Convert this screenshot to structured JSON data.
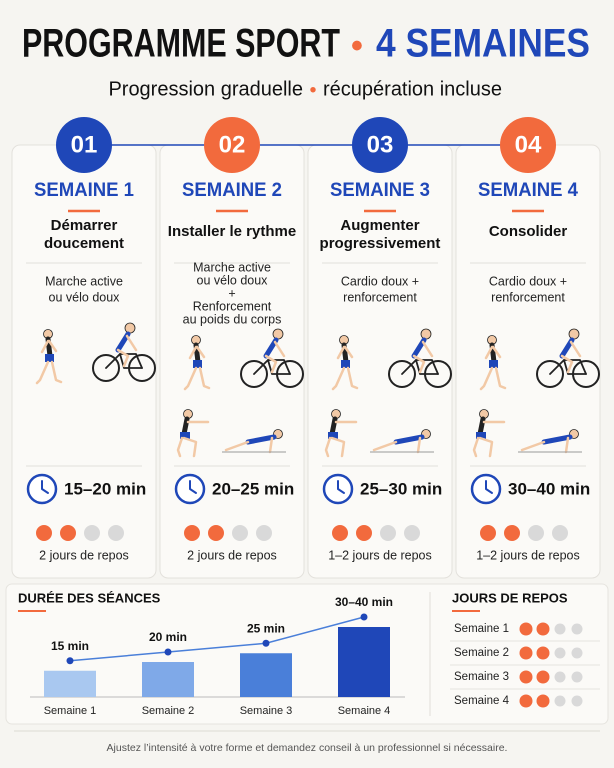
{
  "header": {
    "title_part1": "PROGRAMME SPORT",
    "separator": "•",
    "title_part2": "4 SEMAINES",
    "subtitle_part1": "Progression graduelle",
    "subtitle_separator": "•",
    "subtitle_part2": "récupération incluse"
  },
  "weeks": [
    {
      "number": "01",
      "label": "SEMAINE 1",
      "badge_color": "#1f47b8",
      "focus": [
        "Démarrer",
        "doucement"
      ],
      "activity": [
        "Marche active",
        "ou vélo doux"
      ],
      "strength_figures": false,
      "duration": "15–20 min",
      "rest_dots_filled": 2,
      "rest": "2 jours de repos"
    },
    {
      "number": "02",
      "label": "SEMAINE 2",
      "badge_color": "#f26a3d",
      "focus": [
        "Installer le rythme"
      ],
      "activity": [
        "Marche active",
        "ou vélo doux",
        "+",
        "Renforcement",
        "au poids du corps"
      ],
      "strength_figures": true,
      "duration": "20–25 min",
      "rest_dots_filled": 2,
      "rest": "2 jours de repos"
    },
    {
      "number": "03",
      "label": "SEMAINE 3",
      "badge_color": "#1f47b8",
      "focus": [
        "Augmenter",
        "progressivement"
      ],
      "activity": [
        "Cardio doux +",
        "renforcement"
      ],
      "strength_figures": true,
      "duration": "25–30 min",
      "rest_dots_filled": 2,
      "rest": "1–2  jours de repos"
    },
    {
      "number": "04",
      "label": "SEMAINE 4",
      "badge_color": "#f26a3d",
      "focus": [
        "Consolider"
      ],
      "activity": [
        "Cardio doux +",
        "renforcement"
      ],
      "strength_figures": true,
      "duration": "30–40 min",
      "rest_dots_filled": 2,
      "rest": "1–2  jours de repos"
    }
  ],
  "duration_chart": {
    "type": "bar",
    "title": "DURÉE DES SÉANCES",
    "categories": [
      "Semaine 1",
      "Semaine 2",
      "Semaine 3",
      "Semaine 4"
    ],
    "values": [
      15,
      20,
      25,
      40
    ],
    "value_labels": [
      "15 min",
      "20 min",
      "25 min",
      "30–40 min"
    ],
    "colors": [
      "#a9c8f0",
      "#7fa9e8",
      "#4a7fd9",
      "#1f47b8"
    ]
  },
  "rest_table": {
    "title": "JOURS DE REPOS",
    "rows": [
      {
        "label": "Semaine 1",
        "filled": 2
      },
      {
        "label": "Semaine 2",
        "filled": 2
      },
      {
        "label": "Semaine 3",
        "filled": 2
      },
      {
        "label": "Semaine 4",
        "filled": 2
      }
    ]
  },
  "footer": "Ajustez l’intensité à votre forme et demandez conseil à un professionnel si nécessaire."
}
